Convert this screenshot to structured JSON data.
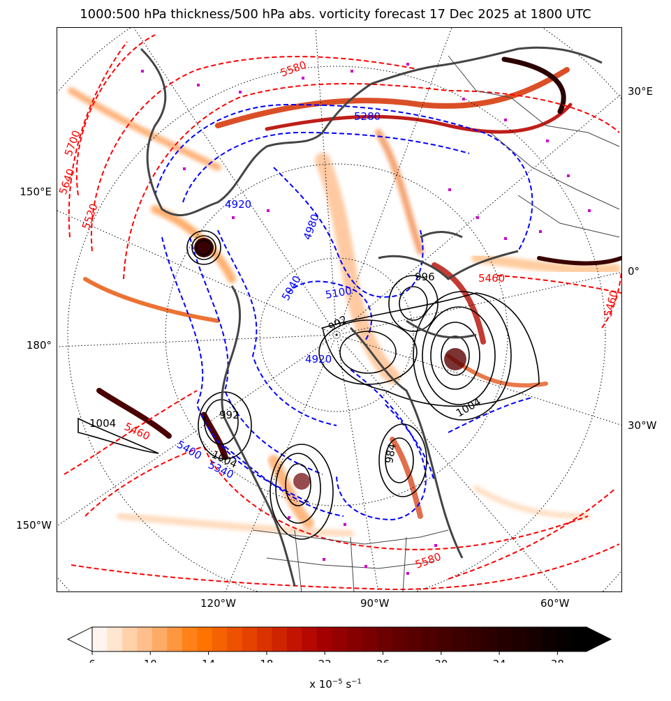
{
  "title": "1000:500 hPa thickness/500 hPa abs. vorticity forecast 17 Dec 2025 at 1800 UTC",
  "edge_labels": {
    "right": [
      "30°E",
      "0°",
      "30°W"
    ],
    "left": [
      "150°E",
      "180°",
      "150°W"
    ],
    "bottom": [
      "120°W",
      "90°W",
      "60°W"
    ]
  },
  "contour_labels": {
    "thickness_red": [
      "5700",
      "5640",
      "5520",
      "5580",
      "5460",
      "5460",
      "5460",
      "5580"
    ],
    "thickness_blue": [
      "5280",
      "4920",
      "4980",
      "5040",
      "5100",
      "5340",
      "5400",
      "4920"
    ],
    "pressure_black": [
      "992",
      "996",
      "1004",
      "992",
      "1004",
      "1004",
      "984"
    ]
  },
  "colorbar": {
    "ticks": [
      "6",
      "10",
      "14",
      "18",
      "22",
      "26",
      "30",
      "34",
      "38"
    ],
    "units_prefix": "x 10",
    "units_exp1": "−5",
    "units_mid": " s",
    "units_exp2": "−1",
    "colors": [
      "#fff5ee",
      "#ffe6d0",
      "#ffd2ac",
      "#ffbf8c",
      "#ffab68",
      "#ff9640",
      "#ff8219",
      "#ff7300",
      "#f76200",
      "#ee5200",
      "#e54200",
      "#db3300",
      "#cf2400",
      "#c21400",
      "#b40800",
      "#a40000",
      "#950000",
      "#870000",
      "#7a0000",
      "#6d0000",
      "#620000",
      "#580000",
      "#4e0000",
      "#450000",
      "#3c0000",
      "#340000",
      "#2d0000",
      "#250000",
      "#1e0000",
      "#160000",
      "#0e0000",
      "#070000",
      "#000000"
    ]
  },
  "colors": {
    "thickness_warm": "#ff0000",
    "thickness_cold": "#0000ff",
    "mslp": "#000000",
    "coast": "#444444",
    "highlight_markers": "#cc00cc"
  }
}
